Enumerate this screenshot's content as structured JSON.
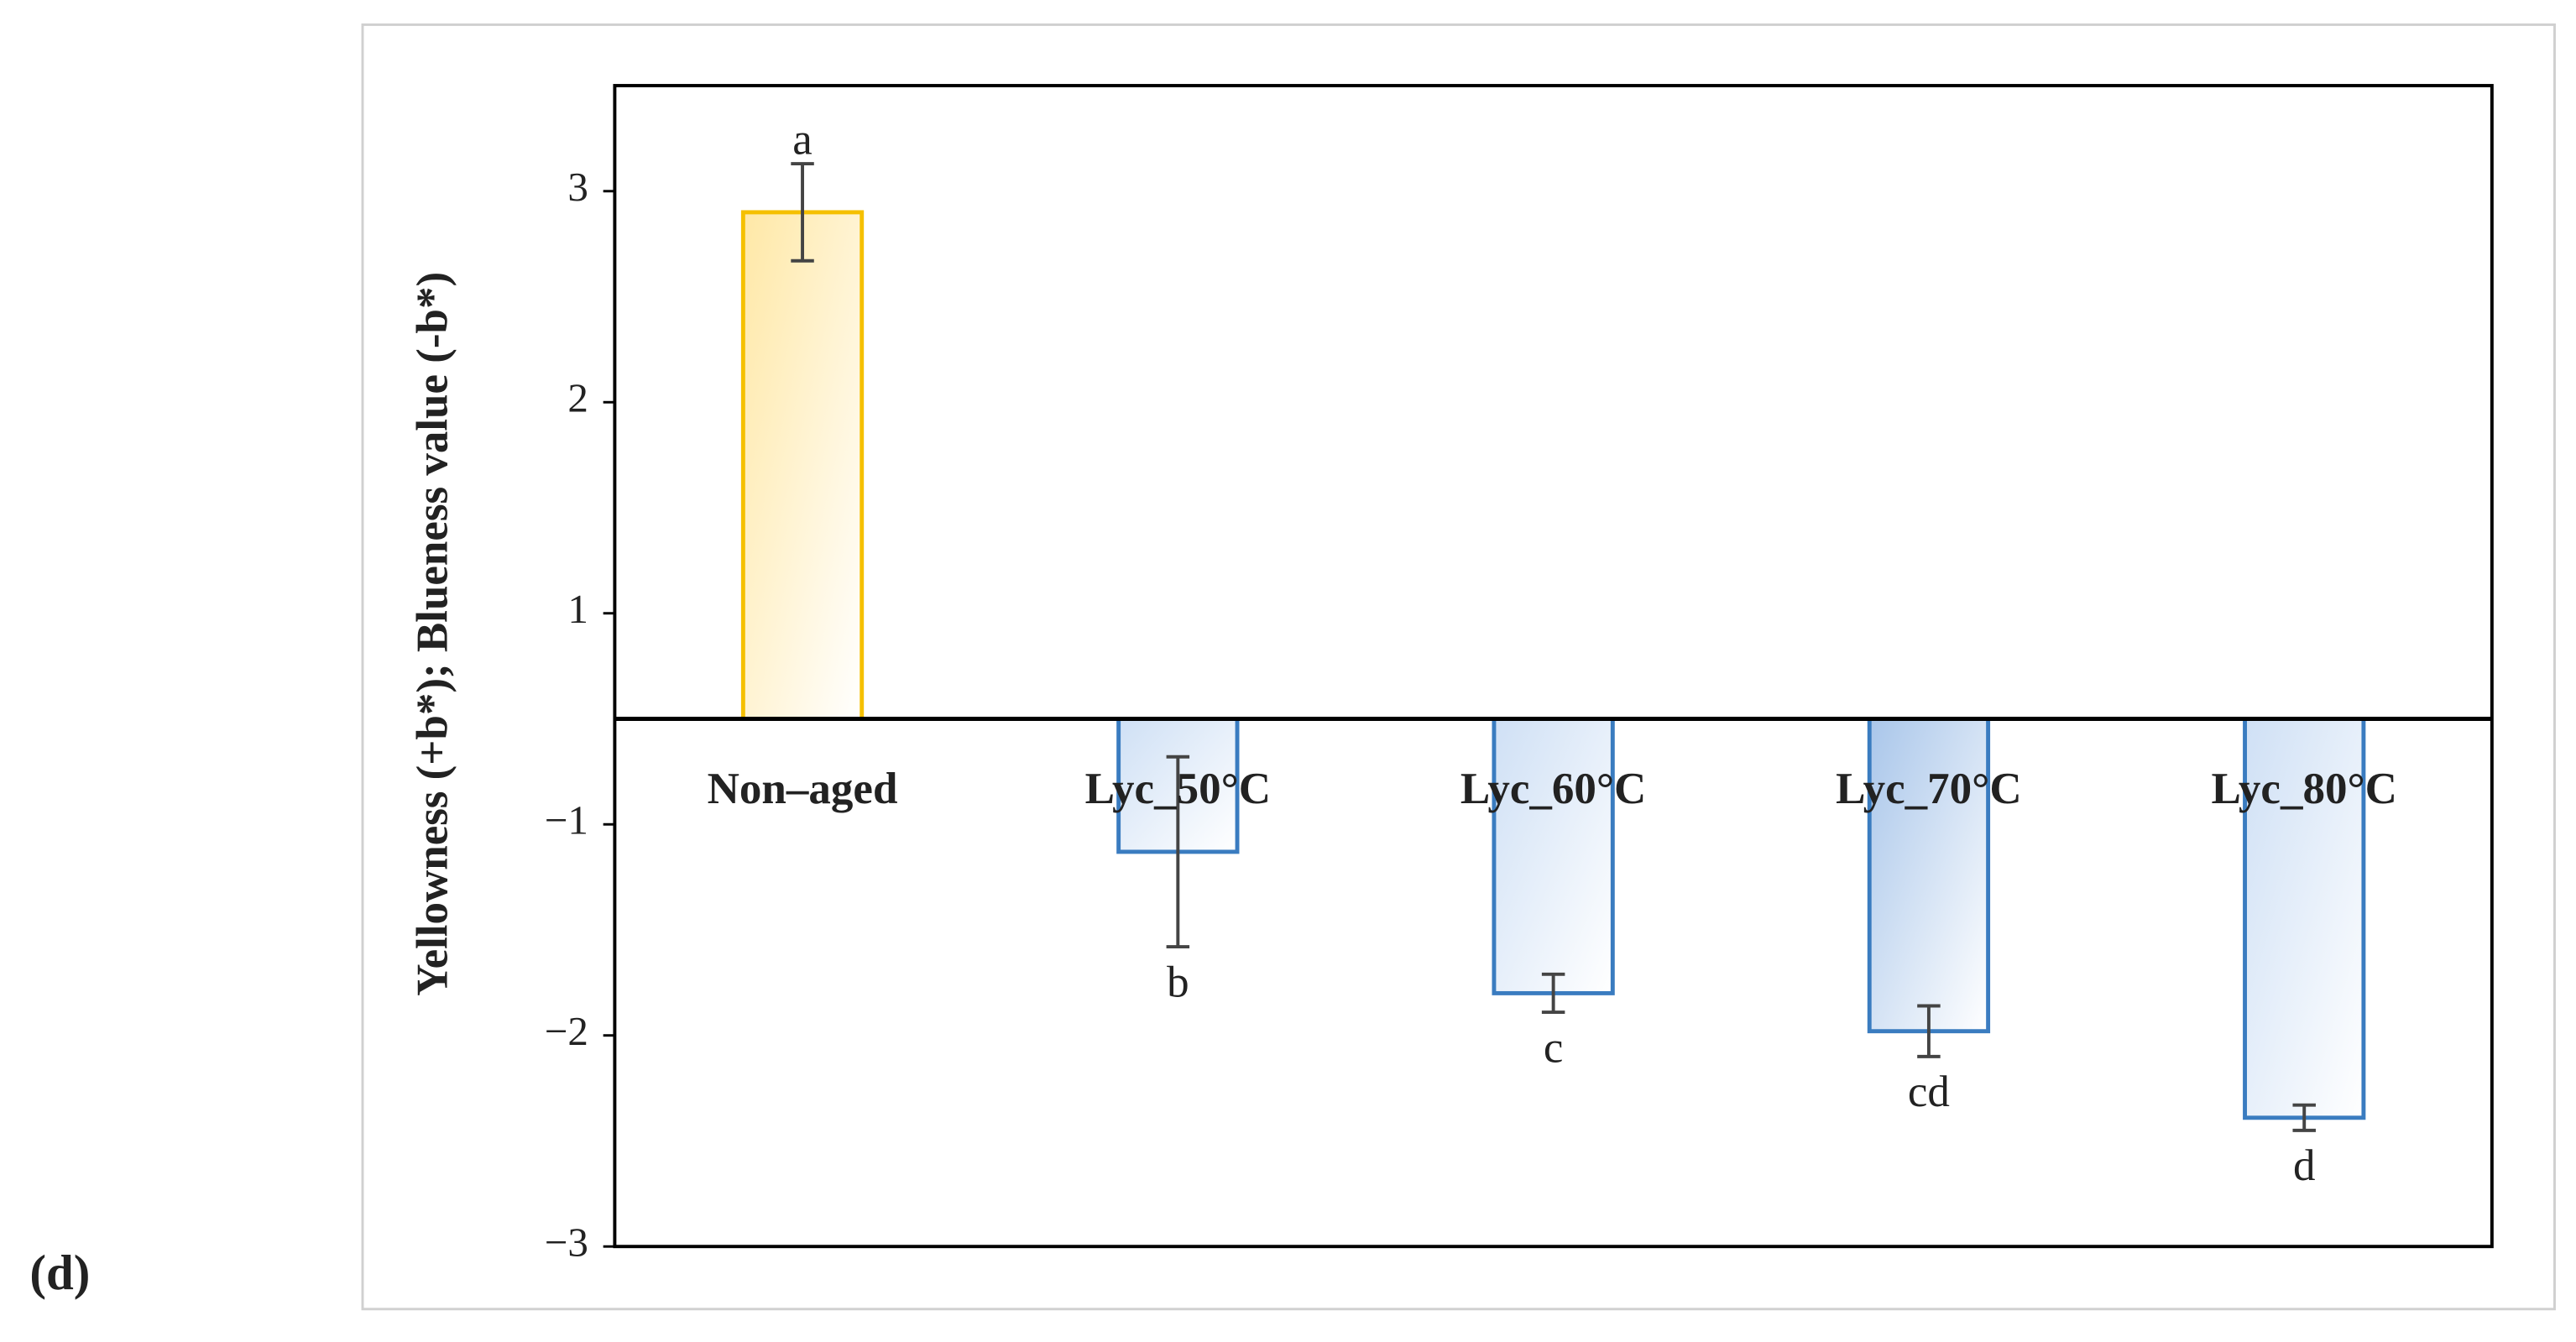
{
  "chart_data": {
    "type": "bar",
    "panel_label": "(d)",
    "y_label": "Yellowness (+b*); Blueness value (-b*)",
    "categories": [
      "Non–aged",
      "Lyc_50°C",
      "Lyc_60°C",
      "Lyc_70°C",
      "Lyc_80°C"
    ],
    "values": [
      2.9,
      -1.13,
      -1.8,
      -1.98,
      -2.39
    ],
    "errors": [
      0.23,
      0.45,
      0.09,
      0.12,
      0.06
    ],
    "letters": [
      "a",
      "b",
      "c",
      "cd",
      "d"
    ],
    "colors": [
      "#ffe8a6",
      "#cfe0f5",
      "#cfe0f5",
      "#a9c6ea",
      "#cfe0f5"
    ],
    "edge_colors": [
      "#f5c000",
      "#3a7cc0",
      "#3a7cc0",
      "#3a7cc0",
      "#3a7cc0"
    ],
    "ylim": [
      -3,
      3.5
    ],
    "yticks": [
      {
        "value": -3,
        "label": "−3"
      },
      {
        "value": -2,
        "label": "−2"
      },
      {
        "value": -1,
        "label": "−1"
      },
      1,
      2,
      3
    ]
  }
}
